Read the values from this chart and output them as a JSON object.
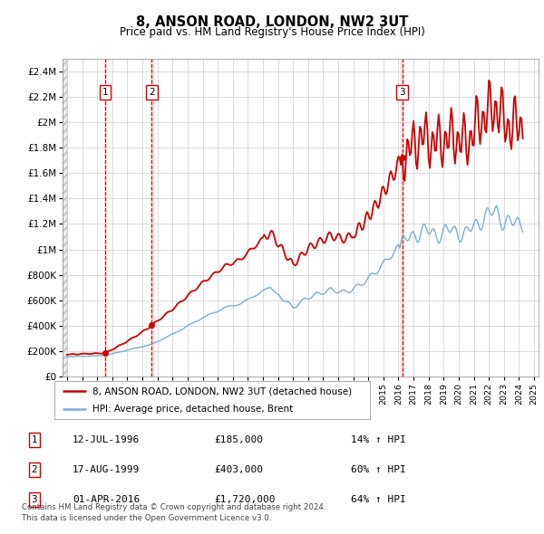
{
  "title": "8, ANSON ROAD, LONDON, NW2 3UT",
  "subtitle": "Price paid vs. HM Land Registry's House Price Index (HPI)",
  "xlim": [
    1993.7,
    2025.3
  ],
  "ylim": [
    0,
    2500000
  ],
  "yticks": [
    0,
    200000,
    400000,
    600000,
    800000,
    1000000,
    1200000,
    1400000,
    1600000,
    1800000,
    2000000,
    2200000,
    2400000
  ],
  "ytick_labels": [
    "£0",
    "£200K",
    "£400K",
    "£600K",
    "£800K",
    "£1M",
    "£1.2M",
    "£1.4M",
    "£1.6M",
    "£1.8M",
    "£2M",
    "£2.2M",
    "£2.4M"
  ],
  "xticks": [
    1994,
    1995,
    1996,
    1997,
    1998,
    1999,
    2000,
    2001,
    2002,
    2003,
    2004,
    2005,
    2006,
    2007,
    2008,
    2009,
    2010,
    2011,
    2012,
    2013,
    2014,
    2015,
    2016,
    2017,
    2018,
    2019,
    2020,
    2021,
    2022,
    2023,
    2024,
    2025
  ],
  "sale_dates": [
    1996.535,
    1999.627,
    2016.247
  ],
  "sale_prices": [
    185000,
    403000,
    1720000
  ],
  "sale_labels": [
    "1",
    "2",
    "3"
  ],
  "vline_color": "#dd0000",
  "vline_shade_color": "#ffcccc",
  "price_line_color": "#cc0000",
  "hpi_line_color": "#7aadd4",
  "background_color": "#ffffff",
  "grid_color": "#cccccc",
  "legend_line1": "8, ANSON ROAD, LONDON, NW2 3UT (detached house)",
  "legend_line2": "HPI: Average price, detached house, Brent",
  "footnote": "Contains HM Land Registry data © Crown copyright and database right 2024.\nThis data is licensed under the Open Government Licence v3.0.",
  "table_data": [
    [
      "1",
      "12-JUL-1996",
      "£185,000",
      "14% ↑ HPI"
    ],
    [
      "2",
      "17-AUG-1999",
      "£403,000",
      "60% ↑ HPI"
    ],
    [
      "3",
      "01-APR-2016",
      "£1,720,000",
      "64% ↑ HPI"
    ]
  ]
}
